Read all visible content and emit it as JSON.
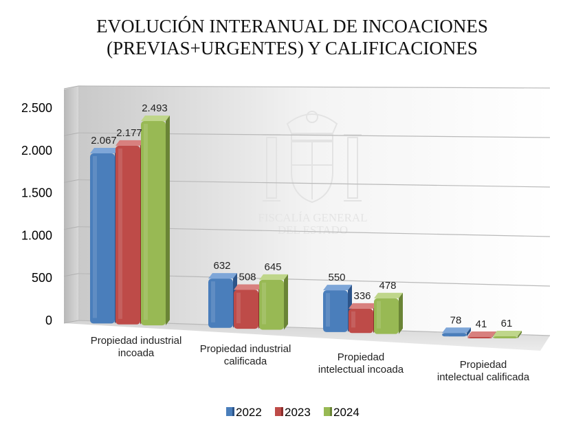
{
  "chart_data": {
    "type": "bar",
    "title": [
      "EVOLUCIÓN INTERANUAL DE INCOACIONES",
      "(PREVIAS+URGENTES) Y CALIFICACIONES"
    ],
    "categories": [
      [
        "Propiedad industrial",
        "incoada"
      ],
      [
        "Propiedad industrial",
        "calificada"
      ],
      [
        "Propiedad",
        "intelectual incoada"
      ],
      [
        "Propiedad",
        "intelectual calificada"
      ]
    ],
    "series": [
      {
        "name": "2022",
        "color": "#4a7ebb",
        "dark": "#2c5489",
        "light": "#7ea6d8",
        "values": [
          2067,
          632,
          550,
          78
        ],
        "labels": [
          "2.067",
          "632",
          "550",
          "78"
        ]
      },
      {
        "name": "2023",
        "color": "#be4b48",
        "dark": "#8a2e2c",
        "light": "#d8807e",
        "values": [
          2177,
          508,
          336,
          41
        ],
        "labels": [
          "2.177",
          "508",
          "336",
          "41"
        ]
      },
      {
        "name": "2024",
        "color": "#98b954",
        "dark": "#6a8436",
        "light": "#bfd68a",
        "values": [
          2493,
          645,
          478,
          61
        ],
        "labels": [
          "2.493",
          "645",
          "478",
          "61"
        ]
      }
    ],
    "ylim": [
      0,
      2500
    ],
    "yticks": [
      0,
      500,
      1000,
      1500,
      2000,
      2500
    ],
    "ytick_labels": [
      "0",
      "500",
      "1.000",
      "1.500",
      "2.000",
      "2.500"
    ],
    "grid": true,
    "legend_position": "bottom",
    "xlabel": "",
    "ylabel": ""
  },
  "watermark": {
    "lines": [
      "FISCALÍA GENERAL",
      "DEL ESTADO"
    ],
    "icon": "coat-of-arms-icon"
  }
}
